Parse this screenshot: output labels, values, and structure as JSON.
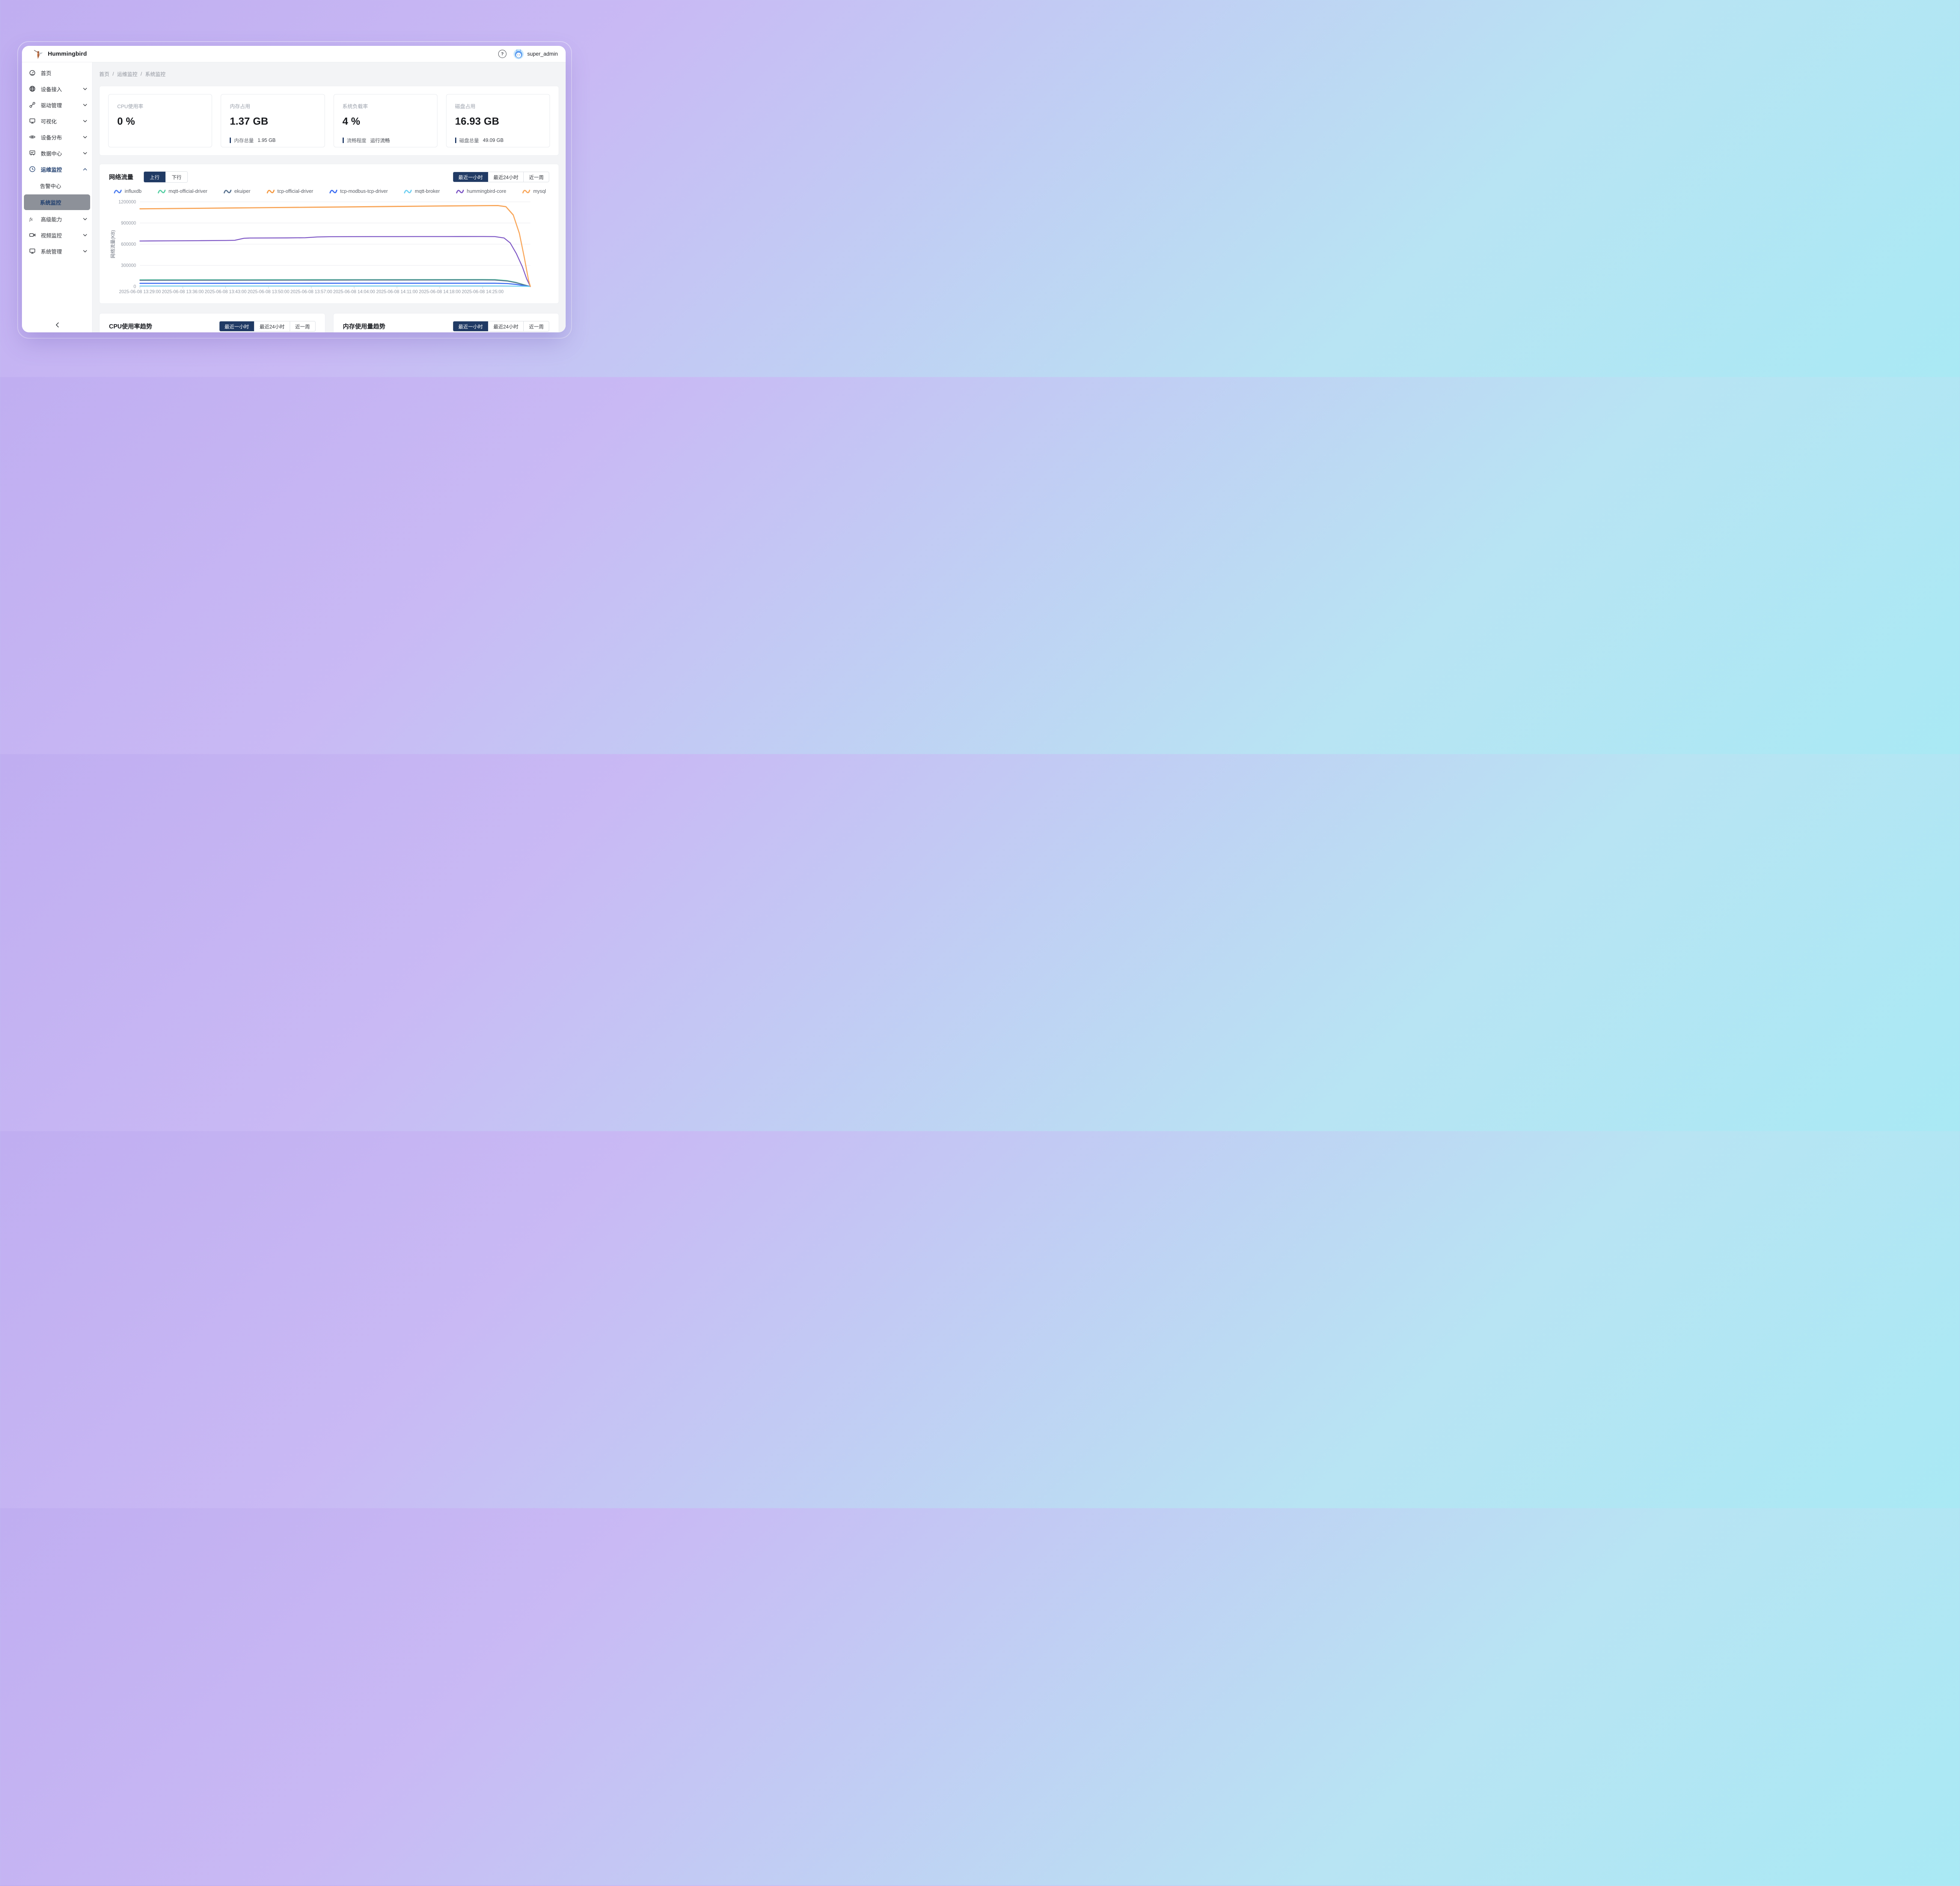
{
  "header": {
    "title": "Hummingbird",
    "username": "super_admin"
  },
  "sidebar": {
    "items": [
      {
        "label": "首页",
        "icon": "gauge-icon"
      },
      {
        "label": "设备接入",
        "icon": "globe-icon",
        "chevron": "down"
      },
      {
        "label": "驱动管理",
        "icon": "link-icon",
        "chevron": "down"
      },
      {
        "label": "可视化",
        "icon": "monitor-icon",
        "chevron": "down"
      },
      {
        "label": "设备分布",
        "icon": "eye-icon",
        "chevron": "down"
      },
      {
        "label": "数据中心",
        "icon": "chart-board-icon",
        "chevron": "down"
      },
      {
        "label": "运维监控",
        "icon": "clock-icon",
        "chevron": "up",
        "active": true,
        "children": [
          {
            "label": "告警中心",
            "selected": false
          },
          {
            "label": "系统监控",
            "selected": true
          }
        ]
      },
      {
        "label": "高级能力",
        "icon": "fx-icon",
        "chevron": "down"
      },
      {
        "label": "视频监控",
        "icon": "video-icon",
        "chevron": "down"
      },
      {
        "label": "系统管理",
        "icon": "monitor-icon",
        "chevron": "down"
      }
    ]
  },
  "breadcrumb": {
    "items": [
      "首页",
      "运维监控",
      "系统监控"
    ],
    "separator": "/"
  },
  "stats": [
    {
      "label": "CPU使用率",
      "value": "0 %"
    },
    {
      "label": "内存占用",
      "value": "1.37 GB",
      "sub_label": "内存总量",
      "sub_value": "1.95 GB"
    },
    {
      "label": "系统负载率",
      "value": "4 %",
      "sub_label": "流畅程度",
      "sub_value": "运行流畅"
    },
    {
      "label": "磁盘占用",
      "value": "16.93 GB",
      "sub_label": "磁盘总量",
      "sub_value": "49.09 GB"
    }
  ],
  "network": {
    "title": "网络流量",
    "direction": {
      "options": [
        "上行",
        "下行"
      ],
      "active_index": 0
    }
  },
  "range_tabs": {
    "options": [
      "最近一小时",
      "最近24小时",
      "近一周"
    ],
    "active_index": 0
  },
  "bottom_panels": [
    {
      "title": "CPU使用率趋势"
    },
    {
      "title": "内存使用量趋势"
    }
  ],
  "colors": {
    "primary_navy": "#203a64",
    "selected_item_bg": "#8d9199"
  },
  "chart_data": {
    "type": "line",
    "title": "网络流量",
    "y_axis_name": "网络流量(KB)",
    "y_max": 1200000,
    "y_tick_interval": 300000,
    "x_tick_interval_minutes": 7,
    "x_max_minutes": 63.8,
    "x_tick_labels": [
      "2025-06-08 13:29:00",
      "2025-06-08 13:36:00",
      "2025-06-08 13:43:00",
      "2025-06-08 13:50:00",
      "2025-06-08 13:57:00",
      "2025-06-08 14:04:00",
      "2025-06-08 14:11:00",
      "2025-06-08 14:18:00",
      "2025-06-08 14:25:00"
    ],
    "legend_position": "top",
    "grid": true,
    "series": [
      {
        "name": "influxdb",
        "color": "#4C7DF0",
        "points": [
          [
            0,
            46000
          ],
          [
            7,
            46200
          ],
          [
            14,
            46500
          ],
          [
            21,
            46800
          ],
          [
            28,
            47000
          ],
          [
            35,
            47300
          ],
          [
            42,
            47600
          ],
          [
            49,
            47800
          ],
          [
            56,
            48000
          ],
          [
            58,
            47600
          ],
          [
            60,
            43000
          ],
          [
            61.5,
            31000
          ],
          [
            62.8,
            12000
          ],
          [
            63.8,
            500
          ]
        ]
      },
      {
        "name": "mqtt-official-driver",
        "color": "#57CFA4",
        "points": [
          [
            0,
            95000
          ],
          [
            7,
            95500
          ],
          [
            14,
            96000
          ],
          [
            21,
            96800
          ],
          [
            28,
            97400
          ],
          [
            35,
            98000
          ],
          [
            42,
            98600
          ],
          [
            49,
            99000
          ],
          [
            56,
            99500
          ],
          [
            58,
            98200
          ],
          [
            60,
            84000
          ],
          [
            61.5,
            58000
          ],
          [
            62.8,
            24000
          ],
          [
            63.8,
            800
          ]
        ]
      },
      {
        "name": "ekuiper",
        "color": "#5A7390",
        "points": [
          [
            0,
            88000
          ],
          [
            7,
            88400
          ],
          [
            14,
            88900
          ],
          [
            21,
            89500
          ],
          [
            28,
            90200
          ],
          [
            35,
            90900
          ],
          [
            42,
            91500
          ],
          [
            49,
            92000
          ],
          [
            56,
            92500
          ],
          [
            58,
            91200
          ],
          [
            60,
            78000
          ],
          [
            61.5,
            53000
          ],
          [
            62.8,
            21000
          ],
          [
            63.8,
            600
          ]
        ]
      },
      {
        "name": "tcp-official-driver",
        "color": "#F59B45",
        "points": [
          [
            0,
            1100000
          ],
          [
            7,
            1105000
          ],
          [
            14,
            1111000
          ],
          [
            21,
            1117000
          ],
          [
            28,
            1122000
          ],
          [
            35,
            1128000
          ],
          [
            42,
            1134000
          ],
          [
            49,
            1140000
          ],
          [
            56,
            1145000
          ],
          [
            58.5,
            1146000
          ],
          [
            59.8,
            1130000
          ],
          [
            61,
            1012000
          ],
          [
            62,
            752000
          ],
          [
            62.8,
            412000
          ],
          [
            63.5,
            88000
          ],
          [
            63.8,
            0
          ]
        ]
      },
      {
        "name": "tcp-modbus-tcp-driver",
        "color": "#3D6EF2",
        "points": [
          [
            0,
            44000
          ],
          [
            7,
            44300
          ],
          [
            14,
            44600
          ],
          [
            21,
            44900
          ],
          [
            28,
            45100
          ],
          [
            35,
            45300
          ],
          [
            42,
            45500
          ],
          [
            49,
            45700
          ],
          [
            56,
            45800
          ],
          [
            58,
            45400
          ],
          [
            60,
            41000
          ],
          [
            61.5,
            29000
          ],
          [
            62.8,
            11000
          ],
          [
            63.8,
            400
          ]
        ]
      },
      {
        "name": "mqtt-broker",
        "color": "#6FD0F2",
        "points": [
          [
            0,
            7000
          ],
          [
            14,
            7200
          ],
          [
            28,
            7400
          ],
          [
            42,
            7600
          ],
          [
            56,
            7800
          ],
          [
            59,
            7600
          ],
          [
            61,
            6200
          ],
          [
            62.8,
            2800
          ],
          [
            63.8,
            200
          ]
        ]
      },
      {
        "name": "hummingbird-core",
        "color": "#7E57C5",
        "points": [
          [
            0,
            645000
          ],
          [
            5,
            648000
          ],
          [
            10,
            650000
          ],
          [
            14,
            652000
          ],
          [
            15.5,
            655000
          ],
          [
            17,
            684000
          ],
          [
            18,
            687000
          ],
          [
            24,
            689000
          ],
          [
            27,
            691000
          ],
          [
            29,
            702000
          ],
          [
            31,
            706000
          ],
          [
            38,
            707000
          ],
          [
            45,
            708000
          ],
          [
            52,
            708500
          ],
          [
            56,
            709000
          ],
          [
            58,
            707000
          ],
          [
            59.5,
            688000
          ],
          [
            60.5,
            618000
          ],
          [
            61.5,
            468000
          ],
          [
            62.5,
            278000
          ],
          [
            63.2,
            108000
          ],
          [
            63.8,
            0
          ]
        ]
      },
      {
        "name": "mysql",
        "color": "#F9A75B",
        "points": [
          [
            0,
            1103000
          ],
          [
            7,
            1108000
          ],
          [
            14,
            1114000
          ],
          [
            21,
            1120000
          ],
          [
            28,
            1125000
          ],
          [
            35,
            1131000
          ],
          [
            42,
            1137000
          ],
          [
            49,
            1143000
          ],
          [
            56,
            1148000
          ],
          [
            58.5,
            1149000
          ],
          [
            59.8,
            1133000
          ],
          [
            61,
            1016000
          ],
          [
            62,
            756000
          ],
          [
            62.8,
            416000
          ],
          [
            63.5,
            92000
          ],
          [
            63.8,
            0
          ]
        ]
      }
    ]
  }
}
